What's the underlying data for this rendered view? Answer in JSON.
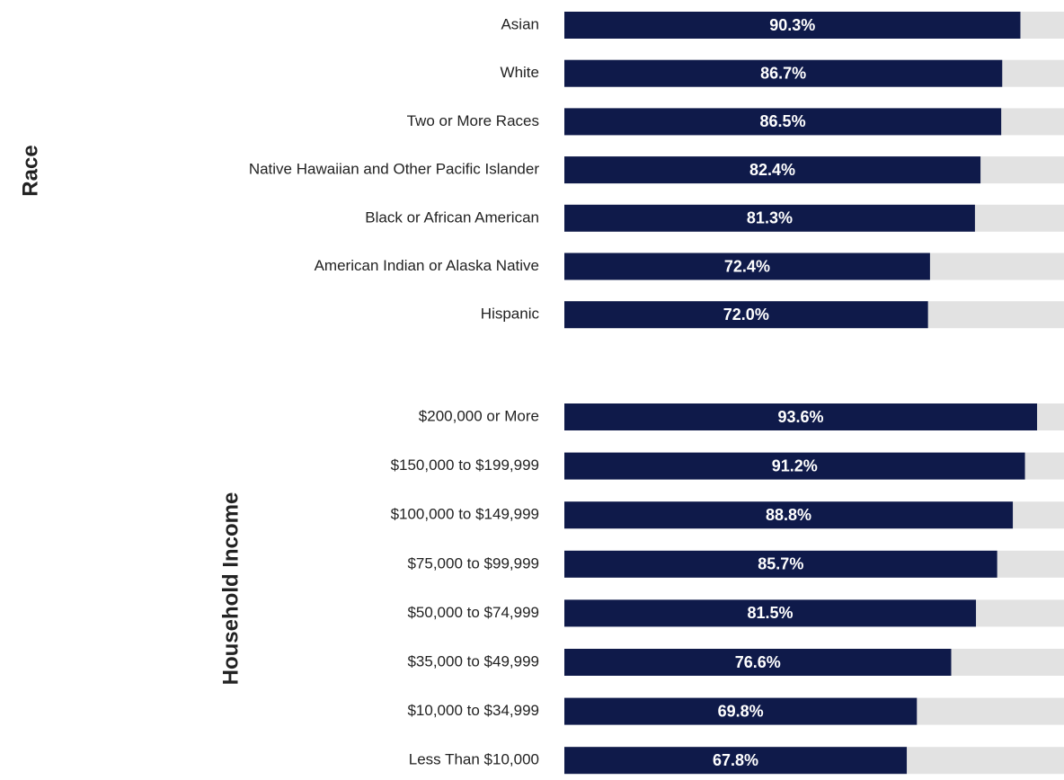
{
  "chart_data": [
    {
      "type": "bar",
      "axis_label": "Race",
      "categories": [
        "Asian",
        "White",
        "Two or More Races",
        "Native Hawaiian and Other Pacific Islander",
        "Black or African American",
        "American Indian or Alaska Native",
        "Hispanic"
      ],
      "values": [
        90.3,
        86.7,
        86.5,
        82.4,
        81.3,
        72.4,
        72
      ],
      "value_labels": [
        "90.3%",
        "86.7%",
        "86.5%",
        "82.4%",
        "81.3%",
        "72.4%",
        "72.0%"
      ],
      "color": "#0f1a4a",
      "background_color": "#e2e2e2",
      "xlim": [
        0,
        100
      ]
    },
    {
      "type": "bar",
      "axis_label": "Household Income",
      "categories": [
        "$200,000 or More",
        "$150,000 to $199,999",
        "$100,000 to $149,999",
        "$75,000 to $99,999",
        "$50,000 to $74,999",
        "$35,000 to $49,999",
        "$10,000 to $34,999",
        "Less Than $10,000"
      ],
      "values": [
        93.6,
        91.2,
        88.8,
        85.7,
        81.5,
        76.6,
        69.8,
        67.8
      ],
      "value_labels": [
        "93.6%",
        "91.2%",
        "88.8%",
        "85.7%",
        "81.5%",
        "76.6%",
        "69.8%",
        "67.8%"
      ],
      "color": "#0f1a4a",
      "background_color": "#e2e2e2",
      "xlim": [
        0,
        100
      ]
    }
  ]
}
